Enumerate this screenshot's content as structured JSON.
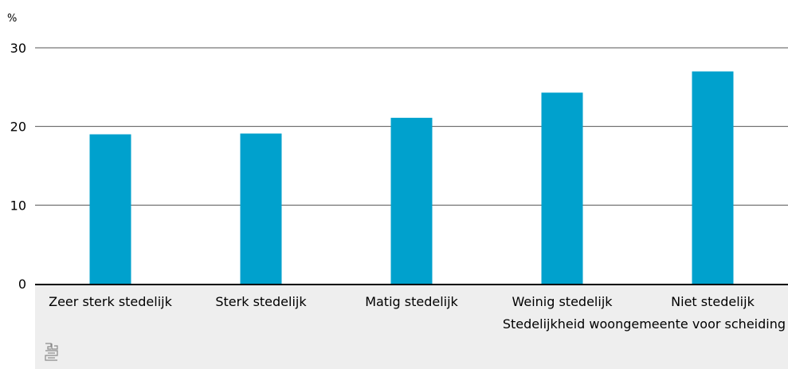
{
  "chart_data": {
    "type": "bar",
    "title": "",
    "ylabel": "%",
    "xlabel": "Stedelijkheid woongemeente voor scheiding",
    "categories": [
      "Zeer sterk stedelijk",
      "Sterk stedelijk",
      "Matig stedelijk",
      "Weinig stedelijk",
      "Niet stedelijk"
    ],
    "values": [
      19.0,
      19.1,
      21.1,
      24.3,
      27.0
    ],
    "ylim": [
      0,
      30
    ],
    "yticks": [
      "0",
      "10",
      "20",
      "30"
    ],
    "grid": true,
    "legend": "none",
    "bar_color": "#00a1cd"
  },
  "branding": {
    "logo_icon": "cbs-logo-icon"
  }
}
